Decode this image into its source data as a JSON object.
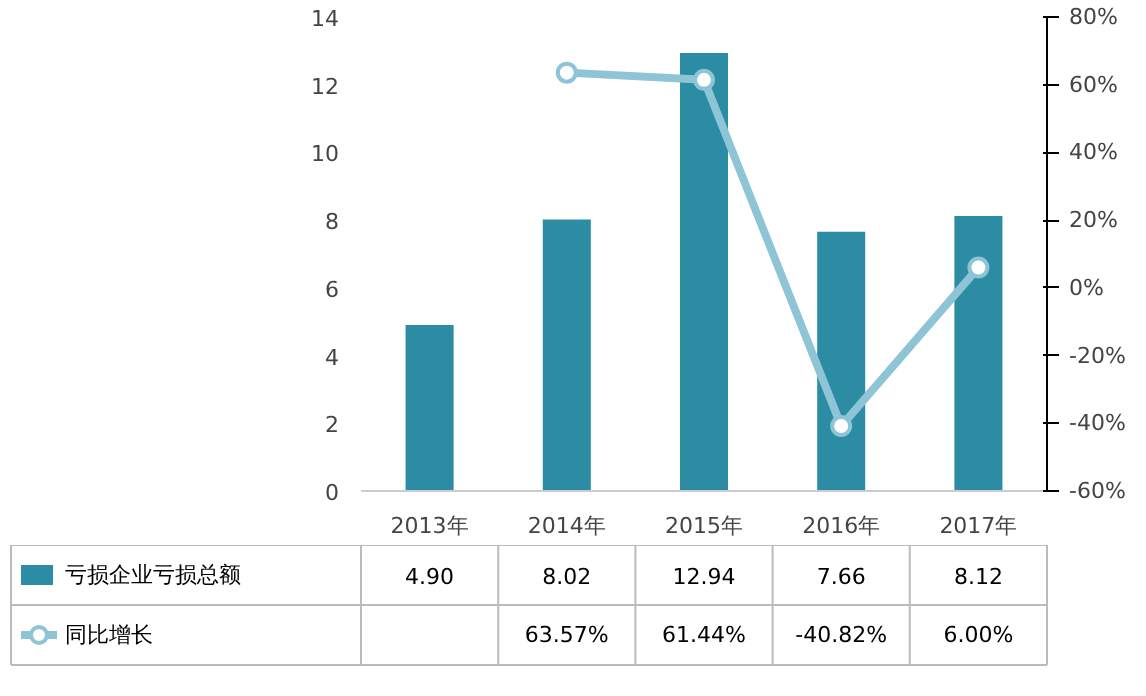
{
  "chart_data": {
    "type": "bar",
    "categories": [
      "2013年",
      "2014年",
      "2015年",
      "2016年",
      "2017年"
    ],
    "series": [
      {
        "name": "亏损企业亏损总额",
        "color": "#2b8ca3",
        "values": [
          4.9,
          8.02,
          12.94,
          7.66,
          8.12
        ],
        "value_labels": [
          "4.90",
          "8.02",
          "12.94",
          "7.66",
          "8.12"
        ]
      },
      {
        "name": "同比增长",
        "type": "line",
        "axis": "y2",
        "color": "#8ec5d6",
        "values": [
          null,
          63.57,
          61.44,
          -40.82,
          6.0
        ],
        "value_labels": [
          null,
          "63.57%",
          "61.44%",
          "-40.82%",
          "6.00%"
        ]
      }
    ],
    "ylim": [
      0,
      14
    ],
    "yticks": [
      0,
      2,
      4,
      6,
      8,
      10,
      12,
      14
    ],
    "y2lim": [
      -60,
      80
    ],
    "y2ticks": [
      {
        "value": -60,
        "label": "-60%"
      },
      {
        "value": -40,
        "label": "-40%"
      },
      {
        "value": -20,
        "label": "-20%"
      },
      {
        "value": 0,
        "label": "0%"
      },
      {
        "value": 20,
        "label": "20%"
      },
      {
        "value": 40,
        "label": "40%"
      },
      {
        "value": 60,
        "label": "60%"
      },
      {
        "value": 80,
        "label": "80%"
      }
    ],
    "marker": "circle",
    "legend": "bottom",
    "grid": false
  }
}
